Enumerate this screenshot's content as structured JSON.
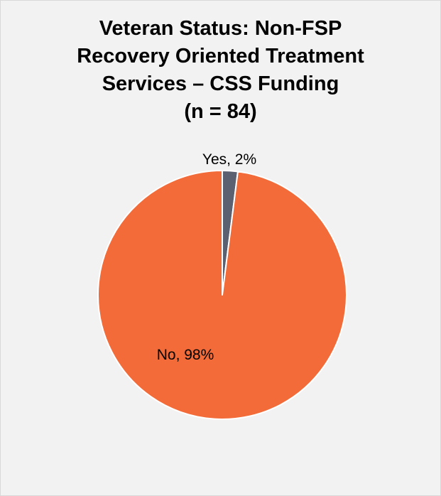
{
  "chart_data": {
    "type": "pie",
    "title_lines": [
      "Veteran Status: Non-FSP",
      "Recovery Oriented Treatment",
      "Services – CSS Funding",
      "(n = 84)"
    ],
    "slices": [
      {
        "label": "Yes",
        "value": 2,
        "data_label": "Yes, 2%",
        "color": "#5b6170"
      },
      {
        "label": "No",
        "value": 98,
        "data_label": "No, 98%",
        "color": "#f26b38"
      }
    ],
    "legend": "none"
  }
}
